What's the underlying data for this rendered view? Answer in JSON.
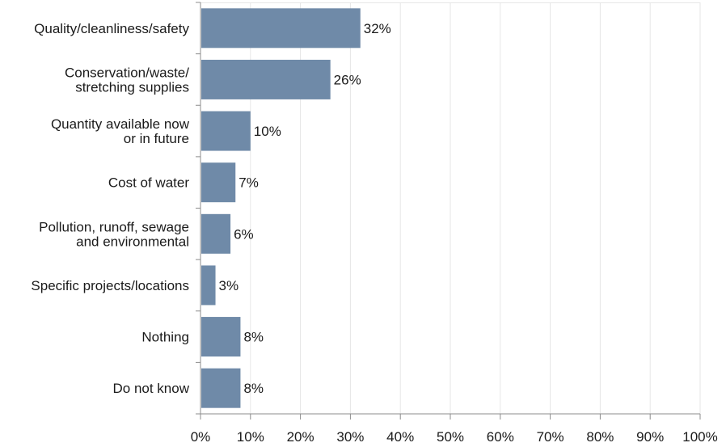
{
  "chart_data": {
    "type": "bar",
    "orientation": "horizontal",
    "categories": [
      [
        "Quality/cleanliness/safety"
      ],
      [
        "Conservation/waste/",
        "stretching supplies"
      ],
      [
        "Quantity available now",
        "or in future"
      ],
      [
        "Cost of water"
      ],
      [
        "Pollution, runoff, sewage",
        "and environmental"
      ],
      [
        "Specific projects/locations"
      ],
      [
        "Nothing"
      ],
      [
        "Do not know"
      ]
    ],
    "values": [
      32,
      26,
      10,
      7,
      6,
      3,
      8,
      8
    ],
    "value_labels": [
      "32%",
      "26%",
      "10%",
      "7%",
      "6%",
      "3%",
      "8%",
      "8%"
    ],
    "xlim": [
      0,
      100
    ],
    "xticks": [
      0,
      10,
      20,
      30,
      40,
      50,
      60,
      70,
      80,
      90,
      100
    ],
    "xtick_labels": [
      "0%",
      "10%",
      "20%",
      "30%",
      "40%",
      "50%",
      "60%",
      "70%",
      "80%",
      "90%",
      "100%"
    ],
    "grid": true,
    "bar_color": "#6f8aa8",
    "grid_color": "#e6e6e6",
    "axis_color": "#8c8c8c"
  }
}
